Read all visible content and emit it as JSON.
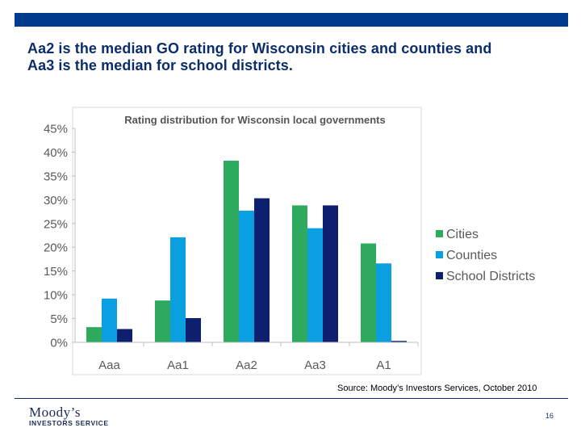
{
  "slide": {
    "title_line1": "Aa2 is the median GO rating for Wisconsin cities and counties and",
    "title_line2": "Aa3 is the median for school districts.",
    "source": "Source: Moody’s Investors Services, October 2010",
    "page_number": "16",
    "logo_line1": "Moody’s",
    "logo_line2": "INVESTORS SERVICE",
    "colors": {
      "top_bar": "#003b8e",
      "title": "#0b2d6b"
    }
  },
  "chart_data": {
    "type": "bar",
    "title": "Rating distribution for Wisconsin local governments",
    "categories": [
      "Aaa",
      "Aa1",
      "Aa2",
      "Aa3",
      "A1"
    ],
    "series": [
      {
        "name": "Cities",
        "color": "#2eaa5e",
        "values": [
          3.2,
          8.8,
          38.2,
          28.8,
          20.8
        ]
      },
      {
        "name": "Counties",
        "color": "#0a9fe0",
        "values": [
          9.2,
          22.1,
          27.7,
          24.0,
          16.6
        ]
      },
      {
        "name": "School Districts",
        "color": "#0d1f6e",
        "values": [
          2.8,
          5.1,
          30.3,
          28.8,
          0.3
        ]
      }
    ],
    "ylim": [
      0,
      45
    ],
    "yticks": [
      "0%",
      "5%",
      "10%",
      "15%",
      "20%",
      "25%",
      "30%",
      "35%",
      "40%",
      "45%"
    ],
    "ytick_values": [
      0,
      5,
      10,
      15,
      20,
      25,
      30,
      35,
      40,
      45
    ],
    "grid": false,
    "legend": "right"
  }
}
